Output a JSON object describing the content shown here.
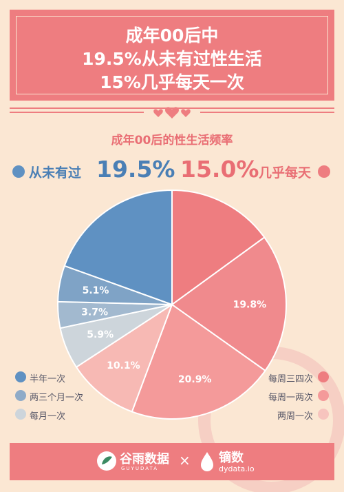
{
  "header": {
    "lines": [
      "成年00后中",
      "19.5%从未有过性生活",
      "15%几乎每天一次"
    ]
  },
  "chart_data": {
    "type": "pie",
    "title": "成年00后的性生活频率",
    "slices": [
      {
        "name": "几乎每天",
        "value": 15.0,
        "label": "15.0%",
        "color": "#ee7d80"
      },
      {
        "name": "每周三四次",
        "value": 19.8,
        "label": "19.8%",
        "color": "#f08a8d"
      },
      {
        "name": "每周一两次",
        "value": 20.9,
        "label": "20.9%",
        "color": "#f49a9a"
      },
      {
        "name": "两周一次",
        "value": 10.1,
        "label": "10.1%",
        "color": "#f7b9b4"
      },
      {
        "name": "每月一次",
        "value": 5.9,
        "label": "5.9%",
        "color": "#cdd5db"
      },
      {
        "name": "两三个月一次",
        "value": 3.7,
        "label": "3.7%",
        "color": "#a2b9cf"
      },
      {
        "name": "半年一次",
        "value": 5.1,
        "label": "5.1%",
        "color": "#7fa3c6"
      },
      {
        "name": "从未有过",
        "value": 19.5,
        "label": "19.5%",
        "color": "#5f91c2"
      }
    ]
  },
  "callouts": {
    "left": {
      "label": "从未有过",
      "value": "19.5%",
      "color": "#4a7fb5"
    },
    "right": {
      "label": "几乎每天",
      "value": "15.0%",
      "color": "#e96e74"
    }
  },
  "legend_left": [
    {
      "label": "半年一次",
      "color": "#5f91c2"
    },
    {
      "label": "两三个月一次",
      "color": "#8fabc8"
    },
    {
      "label": "每月一次",
      "color": "#cdd5db"
    }
  ],
  "legend_right": [
    {
      "label": "每周三四次",
      "color": "#ee7d80"
    },
    {
      "label": "每周一两次",
      "color": "#f49a9a"
    },
    {
      "label": "两周一次",
      "color": "#f7c4be"
    }
  ],
  "footer": {
    "brand1": "谷雨数据",
    "brand1_sub": "GUYUDATA",
    "separator": "×",
    "brand2": "镝数",
    "brand2_sub": "dydata.io"
  }
}
